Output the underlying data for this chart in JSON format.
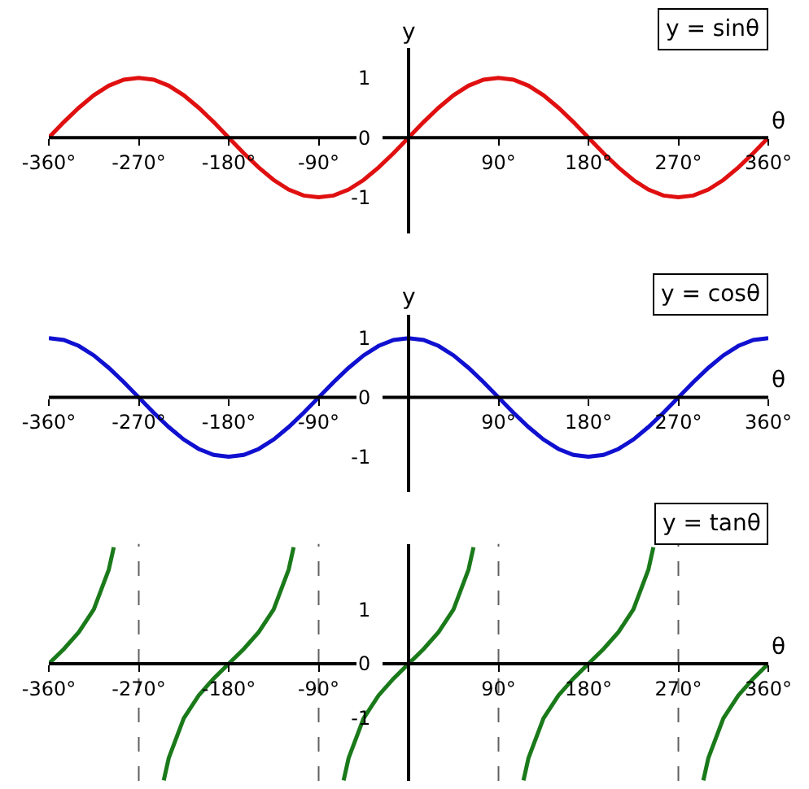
{
  "chart_data": [
    {
      "type": "line",
      "title": "y = sinθ",
      "xlabel": "θ",
      "ylabel": "y",
      "xlim": [
        -360,
        360
      ],
      "ylim": [
        -1.6,
        1.5
      ],
      "grid": false,
      "xticks": [
        {
          "value": -360,
          "label": "-360°"
        },
        {
          "value": -270,
          "label": "-270°"
        },
        {
          "value": -180,
          "label": "-180°"
        },
        {
          "value": -90,
          "label": "-90°"
        },
        {
          "value": 90,
          "label": "90°"
        },
        {
          "value": 180,
          "label": "180°"
        },
        {
          "value": 270,
          "label": "270°"
        },
        {
          "value": 360,
          "label": "360°"
        }
      ],
      "yticks": [
        -1,
        0,
        1
      ],
      "x": [
        -360,
        -345,
        -330,
        -315,
        -300,
        -285,
        -270,
        -255,
        -240,
        -225,
        -210,
        -195,
        -180,
        -165,
        -150,
        -135,
        -120,
        -105,
        -90,
        -75,
        -60,
        -45,
        -30,
        -15,
        0,
        15,
        30,
        45,
        60,
        75,
        90,
        105,
        120,
        135,
        150,
        165,
        180,
        195,
        210,
        225,
        240,
        255,
        270,
        285,
        300,
        315,
        330,
        345,
        360
      ],
      "series": [
        {
          "color": "#e01010",
          "values": [
            0,
            0.26,
            0.5,
            0.71,
            0.87,
            0.97,
            1,
            0.97,
            0.87,
            0.71,
            0.5,
            0.26,
            0,
            -0.26,
            -0.5,
            -0.71,
            -0.87,
            -0.97,
            -1,
            -0.97,
            -0.87,
            -0.71,
            -0.5,
            -0.26,
            0,
            0.26,
            0.5,
            0.71,
            0.87,
            0.97,
            1,
            0.97,
            0.87,
            0.71,
            0.5,
            0.26,
            0,
            -0.26,
            -0.5,
            -0.71,
            -0.87,
            -0.97,
            -1,
            -0.97,
            -0.87,
            -0.71,
            -0.5,
            -0.26,
            0
          ]
        }
      ]
    },
    {
      "type": "line",
      "title": "y = cosθ",
      "xlabel": "θ",
      "ylabel": "y",
      "xlim": [
        -360,
        360
      ],
      "ylim": [
        -1.6,
        1.4
      ],
      "grid": false,
      "xticks": [
        {
          "value": -360,
          "label": "-360°"
        },
        {
          "value": -270,
          "label": "-270°"
        },
        {
          "value": -180,
          "label": "-180°"
        },
        {
          "value": -90,
          "label": "-90°"
        },
        {
          "value": 90,
          "label": "90°"
        },
        {
          "value": 180,
          "label": "180°"
        },
        {
          "value": 270,
          "label": "270°"
        },
        {
          "value": 360,
          "label": "360°"
        }
      ],
      "yticks": [
        -1,
        0,
        1
      ],
      "x": [
        -360,
        -345,
        -330,
        -315,
        -300,
        -285,
        -270,
        -255,
        -240,
        -225,
        -210,
        -195,
        -180,
        -165,
        -150,
        -135,
        -120,
        -105,
        -90,
        -75,
        -60,
        -45,
        -30,
        -15,
        0,
        15,
        30,
        45,
        60,
        75,
        90,
        105,
        120,
        135,
        150,
        165,
        180,
        195,
        210,
        225,
        240,
        255,
        270,
        285,
        300,
        315,
        330,
        345,
        360
      ],
      "series": [
        {
          "color": "#1010d0",
          "values": [
            1,
            0.97,
            0.87,
            0.71,
            0.5,
            0.26,
            0,
            -0.26,
            -0.5,
            -0.71,
            -0.87,
            -0.97,
            -1,
            -0.97,
            -0.87,
            -0.71,
            -0.5,
            -0.26,
            0,
            0.26,
            0.5,
            0.71,
            0.87,
            0.97,
            1,
            0.97,
            0.87,
            0.71,
            0.5,
            0.26,
            0,
            -0.26,
            -0.5,
            -0.71,
            -0.87,
            -0.97,
            -1,
            -0.97,
            -0.87,
            -0.71,
            -0.5,
            -0.26,
            0,
            0.26,
            0.5,
            0.71,
            0.87,
            0.97,
            1
          ]
        }
      ]
    },
    {
      "type": "line",
      "title": "y = tanθ",
      "xlabel": "θ",
      "xlim": [
        -360,
        360
      ],
      "ylim": [
        -2.15,
        2.2
      ],
      "grid": false,
      "xticks": [
        {
          "value": -360,
          "label": "-360°"
        },
        {
          "value": -270,
          "label": "-270°"
        },
        {
          "value": -180,
          "label": "-180°"
        },
        {
          "value": -90,
          "label": "-90°"
        },
        {
          "value": 90,
          "label": "90°"
        },
        {
          "value": 180,
          "label": "180°"
        },
        {
          "value": 270,
          "label": "270°"
        },
        {
          "value": 360,
          "label": "360°"
        }
      ],
      "yticks": [
        -1,
        0,
        1
      ],
      "ref_lines": [
        {
          "axis": "x",
          "value": -270,
          "line_style": "dashed",
          "color": "#606060"
        },
        {
          "axis": "x",
          "value": -90,
          "line_style": "dashed",
          "color": "#606060"
        },
        {
          "axis": "x",
          "value": 90,
          "line_style": "dashed",
          "color": "#606060"
        },
        {
          "axis": "x",
          "value": 270,
          "line_style": "dashed",
          "color": "#606060"
        }
      ],
      "x": [
        -360,
        -345,
        -330,
        -315,
        -300,
        -295,
        null,
        -245,
        -240,
        -225,
        -210,
        -195,
        -180,
        -165,
        -150,
        -135,
        -120,
        -115,
        null,
        -65,
        -60,
        -45,
        -30,
        -15,
        0,
        15,
        30,
        45,
        60,
        65,
        null,
        115,
        120,
        135,
        150,
        165,
        180,
        195,
        210,
        225,
        240,
        245,
        null,
        295,
        300,
        315,
        330,
        345,
        360
      ],
      "series": [
        {
          "color": "#1a7a1a",
          "values": [
            0,
            0.27,
            0.58,
            1,
            1.73,
            2.14,
            null,
            -2.14,
            -1.73,
            -1,
            -0.58,
            -0.27,
            0,
            0.27,
            0.58,
            1,
            1.73,
            2.14,
            null,
            -2.14,
            -1.73,
            -1,
            -0.58,
            -0.27,
            0,
            0.27,
            0.58,
            1,
            1.73,
            2.14,
            null,
            -2.14,
            -1.73,
            -1,
            -0.58,
            -0.27,
            0,
            0.27,
            0.58,
            1,
            1.73,
            2.14,
            null,
            -2.14,
            -1.73,
            -1,
            -0.58,
            -0.27,
            0
          ]
        }
      ]
    }
  ]
}
